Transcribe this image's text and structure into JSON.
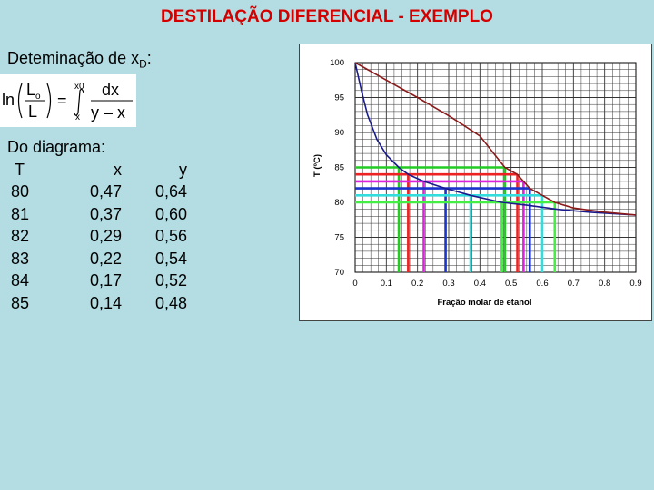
{
  "title": "DESTILAÇÃO DIFERENCIAL - EXEMPLO",
  "determination": {
    "text": "Deteminação de x",
    "subscript": "D",
    "suffix": ":"
  },
  "formula": {
    "ln": "ln",
    "L0_main": "L",
    "L0_sub": "o",
    "L": "L",
    "eq": "=",
    "upper": "x0",
    "lower": "x",
    "num": "dx",
    "den": "y – x"
  },
  "table": {
    "caption": "Do diagrama:",
    "headers": [
      "T",
      "x",
      "y"
    ],
    "rows": [
      [
        "80",
        "0,47",
        "0,64"
      ],
      [
        "81",
        "0,37",
        "0,60"
      ],
      [
        "82",
        "0,29",
        "0,56"
      ],
      [
        "83",
        "0,22",
        "0,54"
      ],
      [
        "84",
        "0,17",
        "0,52"
      ],
      [
        "85",
        "0,14",
        "0,48"
      ]
    ]
  },
  "chart_data": {
    "type": "line",
    "xlabel": "Fração molar de etanol",
    "ylabel": "T (ºC)",
    "xlim": [
      0,
      0.9
    ],
    "ylim": [
      70,
      100
    ],
    "x_ticks": [
      "0",
      "0.1",
      "0.2",
      "0.3",
      "0.4",
      "0.5",
      "0.6",
      "0.7",
      "0.8",
      "0.9"
    ],
    "y_ticks": [
      "100",
      "95",
      "90",
      "85",
      "80",
      "75",
      "70"
    ],
    "grid": true,
    "series": [
      {
        "color": "#1a1a8c",
        "points": [
          [
            0,
            100
          ],
          [
            0.02,
            96
          ],
          [
            0.04,
            92.5
          ],
          [
            0.07,
            89
          ],
          [
            0.1,
            86.8
          ],
          [
            0.14,
            85
          ],
          [
            0.17,
            84
          ],
          [
            0.22,
            83
          ],
          [
            0.29,
            82
          ],
          [
            0.37,
            81
          ],
          [
            0.47,
            80
          ],
          [
            0.55,
            79.6
          ],
          [
            0.65,
            79
          ],
          [
            0.75,
            78.6
          ],
          [
            0.9,
            78.2
          ]
        ]
      },
      {
        "color": "#8b1a1a",
        "points": [
          [
            0,
            100
          ],
          [
            0.1,
            97.5
          ],
          [
            0.2,
            95
          ],
          [
            0.3,
            92.4
          ],
          [
            0.4,
            89.5
          ],
          [
            0.48,
            85
          ],
          [
            0.52,
            84
          ],
          [
            0.54,
            83
          ],
          [
            0.56,
            82
          ],
          [
            0.6,
            81
          ],
          [
            0.64,
            80
          ],
          [
            0.7,
            79.2
          ],
          [
            0.8,
            78.6
          ],
          [
            0.9,
            78.2
          ]
        ]
      }
    ],
    "tie_lines": [
      {
        "T": 85,
        "x": 0.14,
        "y": 0.48,
        "color": "#22cc22"
      },
      {
        "T": 84,
        "x": 0.17,
        "y": 0.52,
        "color": "#ee2222"
      },
      {
        "T": 83,
        "x": 0.22,
        "y": 0.54,
        "color": "#dd22dd"
      },
      {
        "T": 82,
        "x": 0.29,
        "y": 0.56,
        "color": "#1a33cc"
      },
      {
        "T": 81,
        "x": 0.37,
        "y": 0.6,
        "color": "#33dddd"
      },
      {
        "T": 80,
        "x": 0.47,
        "y": 0.64,
        "color": "#44ee44"
      }
    ]
  }
}
